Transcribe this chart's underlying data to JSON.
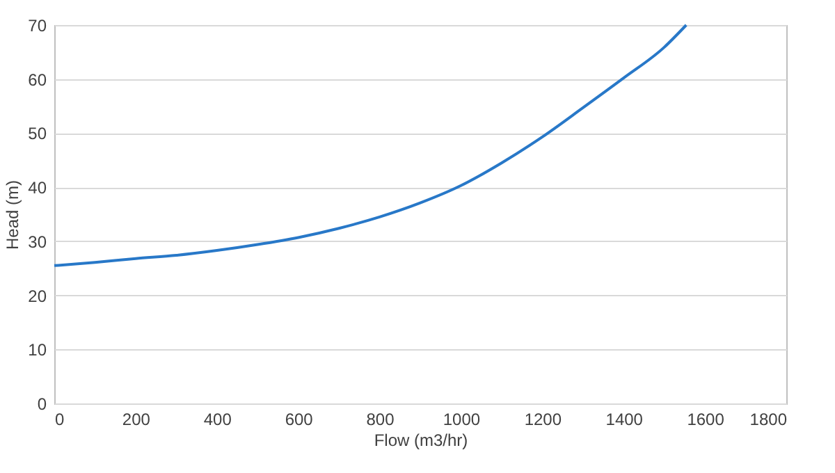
{
  "chart_data": {
    "type": "line",
    "xlabel": "Flow (m3/hr)",
    "ylabel": "Head (m)",
    "x": [
      0,
      100,
      200,
      300,
      400,
      500,
      600,
      700,
      800,
      900,
      1000,
      1100,
      1200,
      1300,
      1400,
      1500,
      1554
    ],
    "series": [
      {
        "color": "#2878c8",
        "values": [
          25.5,
          26.1,
          26.8,
          27.4,
          28.3,
          29.4,
          30.7,
          32.4,
          34.5,
          37.1,
          40.3,
          44.5,
          49.3,
          54.7,
          60.2,
          65.9,
          70
        ]
      }
    ],
    "xlim": [
      0,
      1800
    ],
    "xticks": [
      0,
      200,
      400,
      600,
      800,
      1000,
      1200,
      1400,
      1600,
      1800
    ],
    "ylim": [
      0,
      70
    ],
    "yticks": [
      0,
      10,
      20,
      30,
      40,
      50,
      60,
      70
    ],
    "grid": "y"
  }
}
